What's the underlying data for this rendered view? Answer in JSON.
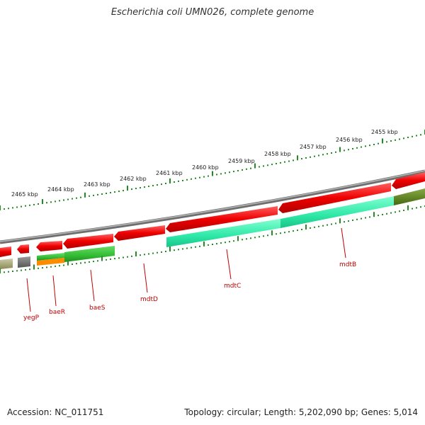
{
  "title": "Escherichia coli UMN026, complete genome",
  "footer": {
    "accession": "Accession: NC_011751",
    "summary": "Topology: circular; Length: 5,202,090 bp; Genes: 5,014"
  },
  "scale": {
    "labels": [
      "2455 kbp",
      "2456 kbp",
      "2457 kbp",
      "2458 kbp",
      "2459 kbp",
      "2460 kbp",
      "2461 kbp",
      "2462 kbp",
      "2463 kbp",
      "2464 kbp",
      "2465 kbp"
    ]
  },
  "genes": [
    {
      "name": "yegP"
    },
    {
      "name": "baeR"
    },
    {
      "name": "baeS"
    },
    {
      "name": "mdtD"
    },
    {
      "name": "mdtC"
    },
    {
      "name": "mdtB"
    }
  ],
  "colors": {
    "backbone": "#8a8a8a",
    "cds": "#e00000",
    "feature_green": "#33bb33",
    "feature_teal": "#2ee8a8",
    "feature_olive": "#a8a868",
    "feature_gray": "#707070",
    "feature_orange": "#ff8c00",
    "feature_darkgreen": "#557722",
    "ticks": "#228b22",
    "gene_label": "#c00000"
  }
}
